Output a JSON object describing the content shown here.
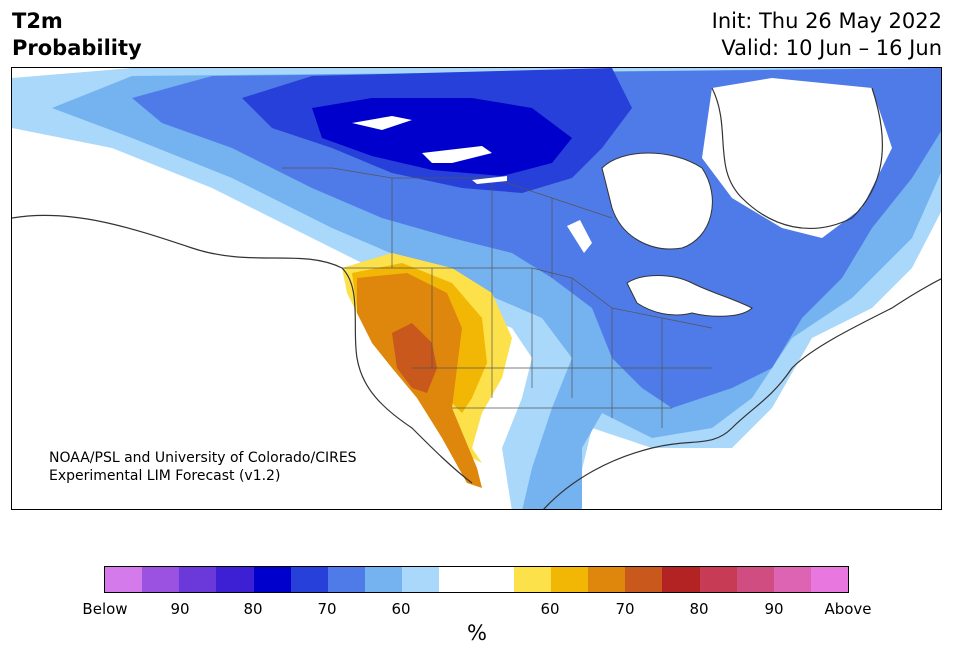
{
  "header": {
    "title_line1": "T2m",
    "title_line2": "Probability",
    "init": "Init: Thu 26 May 2022",
    "valid": "Valid: 10 Jun – 16 Jun"
  },
  "map": {
    "credit_line1": "NOAA/PSL and University of Colorado/CIRES",
    "credit_line2": "Experimental LIM Forecast (v1.2)",
    "below_colors": {
      "60": "#a9d8fa",
      "70": "#74b2f0",
      "80": "#4f7be8",
      "90": "#2640d9",
      "95": "#0000cc"
    },
    "above_colors": {
      "60": "#fde14a",
      "70": "#f2b705",
      "80": "#df860d",
      "90": "#c8581b"
    }
  },
  "colorbar": {
    "colors": [
      "#d57aeb",
      "#9c52e0",
      "#6b39d9",
      "#3d1fd4",
      "#0000cc",
      "#2640d9",
      "#4f7be8",
      "#74b2f0",
      "#a9d8fa",
      "#ffffff",
      "#ffffff",
      "#fde14a",
      "#f2b705",
      "#df860d",
      "#c8581b",
      "#b42323",
      "#c73b54",
      "#cf4d80",
      "#dc64b2",
      "#e878e0"
    ],
    "ticks": [
      {
        "label": "Below"
      },
      {
        "label": "90"
      },
      {
        "label": "80"
      },
      {
        "label": "70"
      },
      {
        "label": "60"
      },
      {
        "label": "60"
      },
      {
        "label": "70"
      },
      {
        "label": "80"
      },
      {
        "label": "90"
      },
      {
        "label": "Above"
      }
    ],
    "unit": "%"
  }
}
